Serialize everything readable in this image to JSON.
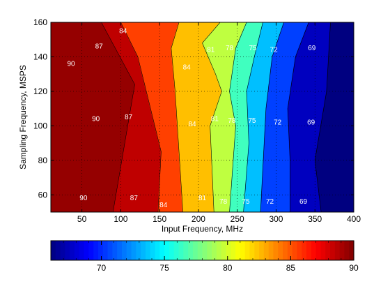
{
  "chart_data": {
    "type": "contour",
    "title": "",
    "xlabel": "Input Frequency, MHz",
    "ylabel": "Sampling Frequency, MSPS",
    "xlim": [
      10,
      400
    ],
    "ylim": [
      50,
      160
    ],
    "x_ticks": [
      50,
      100,
      150,
      200,
      250,
      300,
      350,
      400
    ],
    "y_ticks": [
      60,
      80,
      100,
      120,
      140,
      160
    ],
    "grid": true,
    "grid_style": "dotted",
    "colormap": "jet",
    "colorbar": {
      "orientation": "horizontal",
      "placement": "bottom",
      "range": [
        66,
        90
      ],
      "ticks": [
        70,
        75,
        80,
        85,
        90
      ]
    },
    "levels": [
      66,
      69,
      72,
      75,
      78,
      81,
      84,
      87,
      90
    ],
    "boundaries": [
      {
        "level": 90,
        "points": [
          [
            75,
            160
          ],
          [
            118,
            124
          ],
          [
            90,
            50
          ]
        ]
      },
      {
        "level": 87,
        "points": [
          [
            100,
            160
          ],
          [
            122,
            140
          ],
          [
            152,
            85
          ],
          [
            148,
            50
          ]
        ]
      },
      {
        "level": 84,
        "points": [
          [
            175,
            160
          ],
          [
            165,
            145
          ],
          [
            170,
            120
          ],
          [
            180,
            50
          ]
        ]
      },
      {
        "level": 81,
        "points": [
          [
            228,
            160
          ],
          [
            205,
            148
          ],
          [
            222,
            130
          ],
          [
            230,
            120
          ],
          [
            215,
            100
          ],
          [
            220,
            50
          ]
        ]
      },
      {
        "level": 78,
        "points": [
          [
            262,
            160
          ],
          [
            248,
            145
          ],
          [
            240,
            120
          ],
          [
            248,
            100
          ],
          [
            240,
            50
          ]
        ]
      },
      {
        "level": 75,
        "points": [
          [
            283,
            160
          ],
          [
            272,
            140
          ],
          [
            262,
            120
          ],
          [
            265,
            90
          ],
          [
            258,
            50
          ]
        ]
      },
      {
        "level": 72,
        "points": [
          [
            310,
            160
          ],
          [
            295,
            140
          ],
          [
            287,
            110
          ],
          [
            280,
            50
          ]
        ]
      },
      {
        "level": 69,
        "points": [
          [
            342,
            160
          ],
          [
            325,
            140
          ],
          [
            315,
            110
          ],
          [
            318,
            80
          ],
          [
            318,
            50
          ]
        ]
      },
      {
        "level": 66,
        "points": [
          [
            370,
            160
          ],
          [
            365,
            120
          ],
          [
            350,
            80
          ],
          [
            358,
            50
          ]
        ]
      }
    ],
    "annotations": [
      {
        "text": "90",
        "x": 36,
        "y": 136
      },
      {
        "text": "90",
        "x": 68,
        "y": 104
      },
      {
        "text": "90",
        "x": 52,
        "y": 58
      },
      {
        "text": "87",
        "x": 72,
        "y": 146
      },
      {
        "text": "87",
        "x": 110,
        "y": 105
      },
      {
        "text": "87",
        "x": 117,
        "y": 58
      },
      {
        "text": "84",
        "x": 103,
        "y": 155
      },
      {
        "text": "84",
        "x": 185,
        "y": 134
      },
      {
        "text": "84",
        "x": 192,
        "y": 101
      },
      {
        "text": "84",
        "x": 155,
        "y": 54
      },
      {
        "text": "81",
        "x": 216,
        "y": 144
      },
      {
        "text": "81",
        "x": 221,
        "y": 104
      },
      {
        "text": "81",
        "x": 205,
        "y": 58
      },
      {
        "text": "78",
        "x": 240,
        "y": 145
      },
      {
        "text": "78",
        "x": 243,
        "y": 103
      },
      {
        "text": "78",
        "x": 232,
        "y": 56
      },
      {
        "text": "75",
        "x": 270,
        "y": 145
      },
      {
        "text": "75",
        "x": 269,
        "y": 103
      },
      {
        "text": "75",
        "x": 261,
        "y": 56
      },
      {
        "text": "72",
        "x": 297,
        "y": 144
      },
      {
        "text": "72",
        "x": 302,
        "y": 102
      },
      {
        "text": "72",
        "x": 292,
        "y": 56
      },
      {
        "text": "69",
        "x": 346,
        "y": 145
      },
      {
        "text": "69",
        "x": 345,
        "y": 102
      },
      {
        "text": "69",
        "x": 335,
        "y": 56
      }
    ]
  }
}
